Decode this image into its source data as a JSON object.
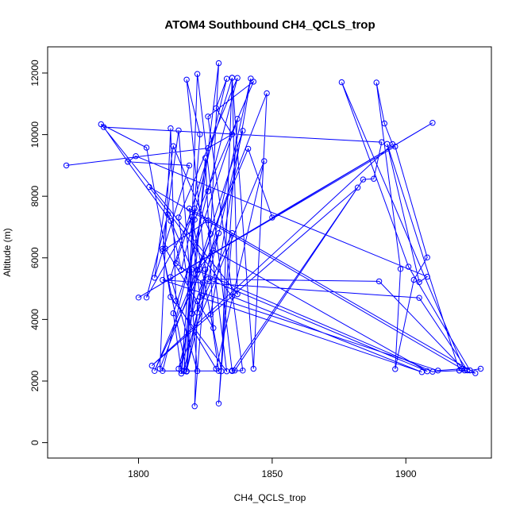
{
  "chart_data": {
    "type": "scatter",
    "title": "ATOM4 Southbound CH4_QCLS_trop",
    "xlabel": "CH4_QCLS_trop",
    "ylabel": "Altitude (m)",
    "xlim": [
      1766,
      1932
    ],
    "ylim": [
      -500,
      12850
    ],
    "xticks": [
      1800,
      1850,
      1900
    ],
    "yticks": [
      0,
      2000,
      4000,
      6000,
      8000,
      10000,
      12000
    ],
    "grid": false,
    "box": true,
    "colors": {
      "series": "#0000ff",
      "axis": "#000000"
    },
    "marker": "open-circle",
    "series": [
      {
        "connected": true,
        "x": [
          1773,
          1826,
          1835,
          1829,
          1833,
          1816,
          1812,
          1796,
          1819,
          1806,
          1813,
          1827,
          1830,
          1816,
          1823,
          1818,
          1825,
          1821,
          1822,
          1822,
          1835,
          1830,
          1837,
          1813,
          1816,
          1821,
          1814,
          1824,
          1818,
          1825,
          1828,
          1810,
          1803,
          1786,
          1837,
          1835,
          1831,
          1820,
          1803,
          1811,
          1820,
          1818,
          1822,
          1835,
          1839,
          1826,
          1843,
          1821,
          1817,
          1817,
          1842,
          1827,
          1830,
          1809,
          1826,
          1837,
          1815,
          1820,
          1822,
          1839,
          1818,
          1809,
          1826,
          1833,
          1812,
          1809,
          1815,
          1822,
          1812,
          1835,
          1843,
          1848,
          1808,
          1812,
          1814,
          1829,
          1847,
          1815,
          1820,
          1830,
          1806,
          1841,
          1850,
          1910,
          1800,
          1896,
          1908,
          1903,
          1896,
          1898,
          1889,
          1892,
          1895,
          1805,
          1882,
          1835,
          1836,
          1884,
          1888,
          1891,
          1787,
          1796,
          1799,
          1908,
          1905,
          1893,
          1920,
          1926,
          1819,
          1823,
          1906,
          1835,
          1804,
          1921,
          1912,
          1809,
          1905,
          1923,
          1920,
          1910,
          1822,
          1828,
          1908,
          1826,
          1890,
          1922,
          1876,
          1901,
          1924,
          1928
        ],
        "y": [
          9000,
          9559,
          10011,
          10858,
          11814,
          5599,
          7204,
          9119,
          8998,
          5354,
          9625,
          6776,
          12320,
          2245,
          10009,
          11786,
          5624,
          1184,
          4592,
          4222,
          6803,
          1271,
          10513,
          4200,
          2327,
          7604,
          5824,
          5198,
          2309,
          9244,
          3722,
          6301,
          9578,
          10337,
          4822,
          11844,
          2320,
          7324,
          4712,
          7418,
          5621,
          2318,
          11968,
          2325,
          2340,
          10587,
          11719,
          7238,
          2324,
          2334,
          11821,
          4166,
          2328,
          2327,
          8163,
          11841,
          7310,
          4195,
          5612,
          10127,
          2321,
          6215,
          7216,
          2317,
          4733,
          6292,
          10137,
          2324,
          5378,
          11845,
          2399,
          11343,
          2400,
          10207,
          4601,
          2400,
          9141,
          2399,
          4186,
          6800,
          2326,
          9540,
          7309,
          10383,
          4711,
          9614,
          6013,
          5287,
          2388,
          5638,
          11690,
          10362,
          9693,
          2500,
          8282,
          2343,
          2342,
          8544,
          8566,
          9754,
          10245,
          9120,
          9300,
          5387,
          5212,
          9699,
          2343,
          2256,
          7601,
          4727,
          2292,
          4744,
          8300,
          2396,
          2339,
          5284,
          4700,
          2347,
          2340,
          2303,
          5587,
          6241,
          2316,
          5311,
          5237,
          2346,
          11700,
          5712,
          2345,
          2400
        ]
      }
    ]
  }
}
